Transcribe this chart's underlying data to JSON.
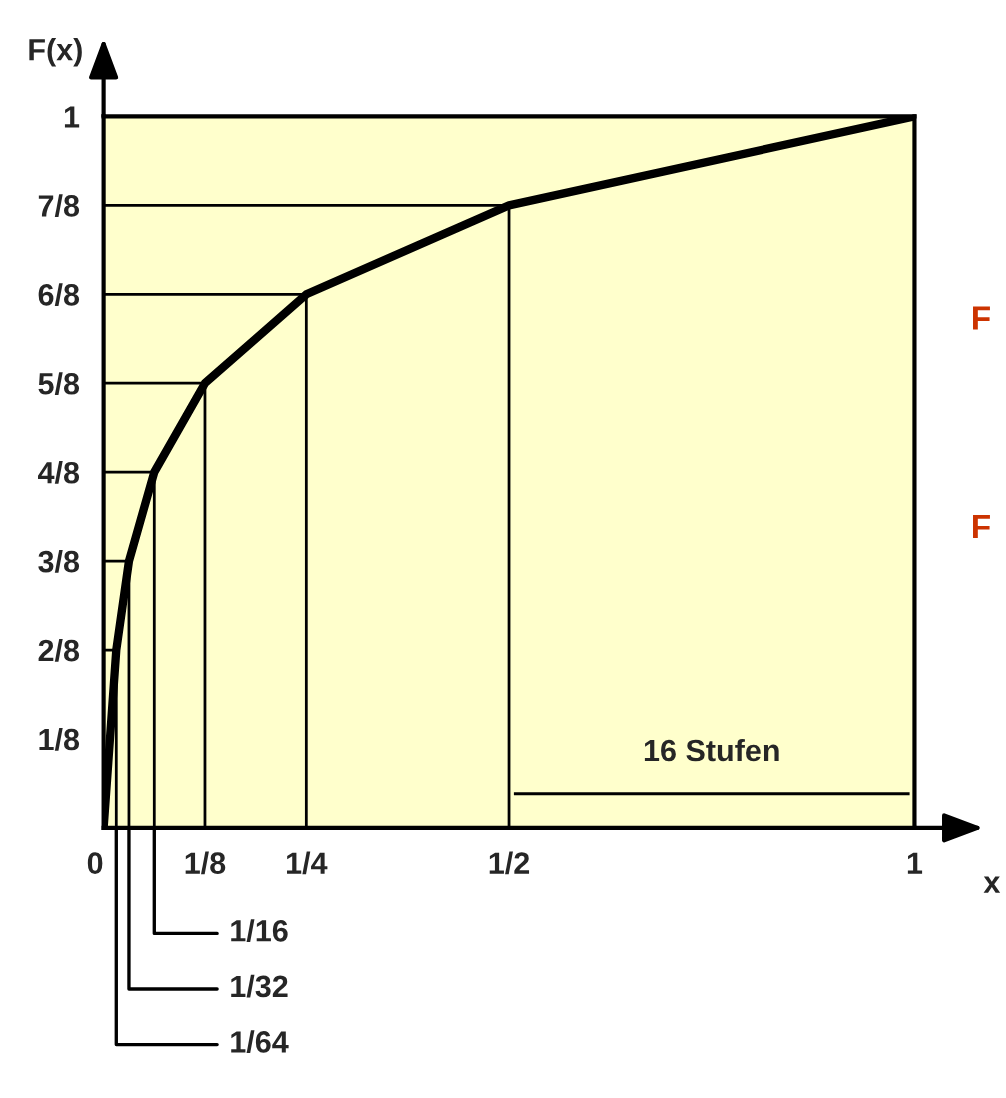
{
  "chart_data": {
    "type": "line",
    "xlabel": "x",
    "ylabel": "F(x)",
    "x": [
      0,
      0.015625,
      0.03125,
      0.0625,
      0.125,
      0.25,
      0.5,
      1
    ],
    "series": [
      {
        "color": "#000000",
        "values": [
          0,
          0.25,
          0.375,
          0.5,
          0.625,
          0.75,
          0.875,
          1
        ]
      },
      {
        "color": "#000000",
        "x": [
          0.015625,
          0.015625
        ],
        "values": [
          0,
          0.25
        ]
      },
      {
        "color": "#000000",
        "x": [
          0.03125,
          0.03125
        ],
        "values": [
          0,
          0.375
        ]
      },
      {
        "color": "#000000",
        "x": [
          0.0625,
          0.0625
        ],
        "values": [
          0,
          0.5
        ]
      },
      {
        "color": "#000000",
        "x": [
          0.125,
          0.125
        ],
        "values": [
          0,
          0.625
        ]
      },
      {
        "color": "#000000",
        "x": [
          0.25,
          0.25
        ],
        "values": [
          0,
          0.75
        ]
      },
      {
        "color": "#000000",
        "x": [
          0.5,
          0.5
        ],
        "values": [
          0,
          0.875
        ]
      },
      {
        "color": "#000000",
        "x": [
          0,
          0.015625
        ],
        "values": [
          0.25,
          0.25
        ]
      },
      {
        "color": "#000000",
        "x": [
          0,
          0.03125
        ],
        "values": [
          0.375,
          0.375
        ]
      },
      {
        "color": "#000000",
        "x": [
          0,
          0.0625
        ],
        "values": [
          0.5,
          0.5
        ]
      },
      {
        "color": "#000000",
        "x": [
          0,
          0.125
        ],
        "values": [
          0.625,
          0.625
        ]
      },
      {
        "color": "#000000",
        "x": [
          0,
          0.25
        ],
        "values": [
          0.75,
          0.75
        ]
      },
      {
        "color": "#000000",
        "x": [
          0,
          0.5
        ],
        "values": [
          0.875,
          0.875
        ]
      }
    ],
    "xlim": [
      0,
      1
    ],
    "ylim": [
      0,
      1
    ],
    "xticks": [
      {
        "value": 0,
        "label": "0"
      },
      {
        "value": 0.125,
        "label": "1/8"
      },
      {
        "value": 0.25,
        "label": "1/4"
      },
      {
        "value": 0.5,
        "label": "1/2"
      },
      {
        "value": 1,
        "label": "1"
      }
    ],
    "yticks": [
      {
        "value": 0.125,
        "label": "1/8"
      },
      {
        "value": 0.25,
        "label": "2/8"
      },
      {
        "value": 0.375,
        "label": "3/8"
      },
      {
        "value": 0.5,
        "label": "4/8"
      },
      {
        "value": 0.625,
        "label": "5/8"
      },
      {
        "value": 0.75,
        "label": "6/8"
      },
      {
        "value": 0.875,
        "label": "7/8"
      },
      {
        "value": 1,
        "label": "1"
      }
    ],
    "annotations": [
      "1/16",
      "1/32",
      "1/64",
      "16 Stufen",
      "F",
      "F"
    ],
    "grid": false,
    "marker": "none",
    "line_style": "solid",
    "legend": false
  }
}
